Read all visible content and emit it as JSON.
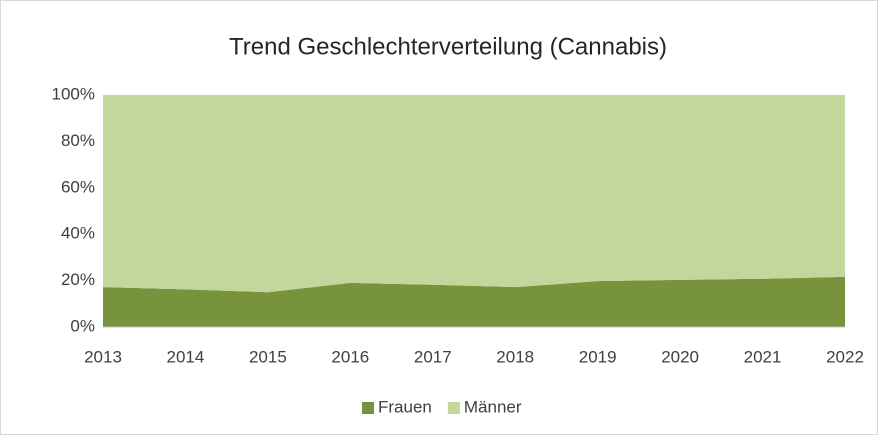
{
  "chart_data": {
    "type": "area",
    "stacked": true,
    "title": "Trend Geschlechterverteilung (Cannabis)",
    "categories": [
      "2013",
      "2014",
      "2015",
      "2016",
      "2017",
      "2018",
      "2019",
      "2020",
      "2021",
      "2022"
    ],
    "series": [
      {
        "name": "Frauen",
        "color": "#77933c",
        "values": [
          17.2,
          16.2,
          15,
          19,
          18.2,
          17.2,
          19.8,
          20.3,
          20.8,
          21.6
        ]
      },
      {
        "name": "Männer",
        "color": "#c3d69b",
        "values": [
          82.8,
          83.8,
          85,
          81,
          81.8,
          82.8,
          80.2,
          79.7,
          79.2,
          78.4
        ]
      }
    ],
    "ylim": [
      0,
      100
    ],
    "yticks": [
      {
        "value": 0,
        "label": "0%"
      },
      {
        "value": 20,
        "label": "20%"
      },
      {
        "value": 40,
        "label": "40%"
      },
      {
        "value": 60,
        "label": "60%"
      },
      {
        "value": 80,
        "label": "80%"
      },
      {
        "value": 100,
        "label": "100%"
      }
    ],
    "legend": "bottom"
  }
}
